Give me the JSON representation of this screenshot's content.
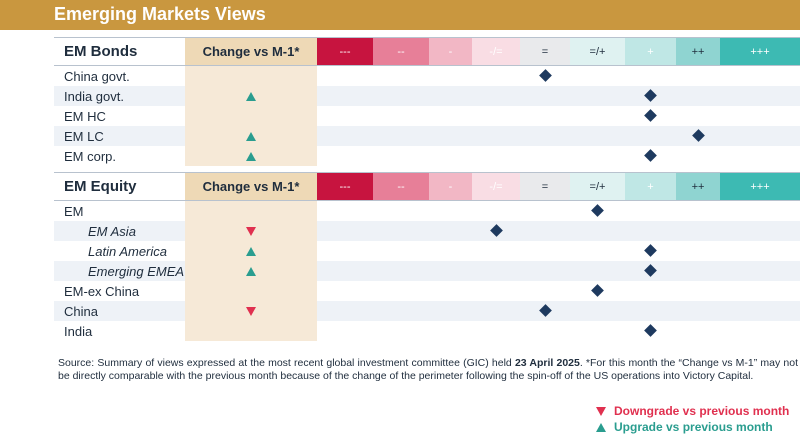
{
  "title": "Emerging Markets Views",
  "scale_labels": [
    "---",
    "--",
    "-",
    "-/=",
    "=",
    "=/+",
    "+",
    "++",
    "+++"
  ],
  "scale_colors": [
    "#c7143f",
    "#e77f98",
    "#f2b7c5",
    "#f9dde4",
    "#e9eaec",
    "#dff2f1",
    "#bfe7e5",
    "#8fd4d1",
    "#3dbab3"
  ],
  "scale_text_colors": [
    "#ffffff",
    "#ffffff",
    "#ffffff",
    "#ffffff",
    "#1f2d3d",
    "#1f2d3d",
    "#ffffff",
    "#1f2d3d",
    "#ffffff"
  ],
  "change_header": "Change vs M-1*",
  "bonds": {
    "header": "EM Bonds",
    "rows": [
      {
        "label": "China govt.",
        "view": "=",
        "change": ""
      },
      {
        "label": "India govt.",
        "view": "+",
        "change": "up"
      },
      {
        "label": "EM HC",
        "view": "+",
        "change": ""
      },
      {
        "label": "EM LC",
        "view": "++",
        "change": "up"
      },
      {
        "label": "EM corp.",
        "view": "+",
        "change": "up"
      }
    ]
  },
  "equity": {
    "header": "EM Equity",
    "rows": [
      {
        "label": "EM",
        "view": "=/+",
        "change": "",
        "italic": false
      },
      {
        "label": "EM Asia",
        "view": "-/=",
        "change": "down",
        "italic": true
      },
      {
        "label": "Latin America",
        "view": "+",
        "change": "up",
        "italic": true
      },
      {
        "label": "Emerging EMEA",
        "view": "+",
        "change": "up",
        "italic": true
      },
      {
        "label": "EM-ex China",
        "view": "=/+",
        "change": "",
        "italic": false
      },
      {
        "label": "China",
        "view": "=",
        "change": "down",
        "italic": false
      },
      {
        "label": "India",
        "view": "+",
        "change": "",
        "italic": false
      }
    ]
  },
  "footnote": {
    "part1": "Source: Summary of views expressed at the most recent global investment committee (GIC) held ",
    "date": "23 April 2025",
    "part2": ". *",
    "part3": "For this month the “Change vs M-1” may not be directly comparable with the previous month because of the change of the perimeter following the spin-off of the US operations into Victory Capital."
  },
  "legend": {
    "downgrade": "Downgrade vs previous month",
    "upgrade": "Upgrade vs previous month",
    "downgrade_color": "#e0304f",
    "upgrade_color": "#2a9d8f"
  }
}
